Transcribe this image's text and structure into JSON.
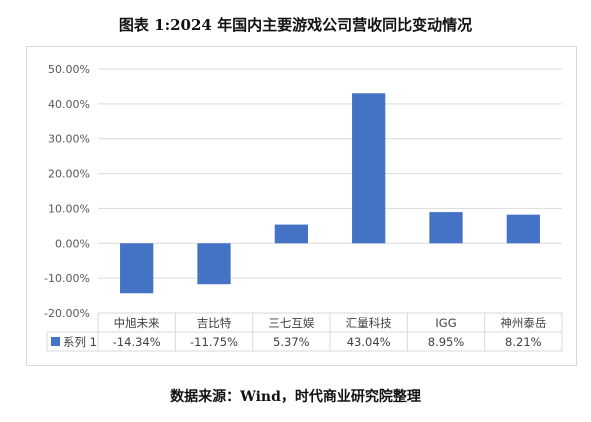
{
  "title": "图表 1:2024 年国内主要游戏公司营收同比变动情况",
  "source": "数据来源：Wind，时代商业研究院整理",
  "colors": {
    "bar": "#4472C4",
    "grid": "#d9d9d9",
    "text": "#595959"
  },
  "chart_data": {
    "type": "bar",
    "categories": [
      "中旭未来",
      "吉比特",
      "三七互娱",
      "汇量科技",
      "IGG",
      "神州泰岳"
    ],
    "series": [
      {
        "name": "系列 1",
        "values": [
          -14.34,
          -11.75,
          5.37,
          43.04,
          8.95,
          8.21
        ],
        "labels": [
          "-14.34%",
          "-11.75%",
          "5.37%",
          "43.04%",
          "8.95%",
          "8.21%"
        ]
      }
    ],
    "ylim": [
      -20,
      50
    ],
    "yticks": [
      50,
      40,
      30,
      20,
      10,
      0,
      -10,
      -20
    ],
    "ytick_labels": [
      "50.00%",
      "40.00%",
      "30.00%",
      "20.00%",
      "10.00%",
      "0.00%",
      "-10.00%",
      "-20.00%"
    ],
    "grid": true,
    "data_table": true
  }
}
